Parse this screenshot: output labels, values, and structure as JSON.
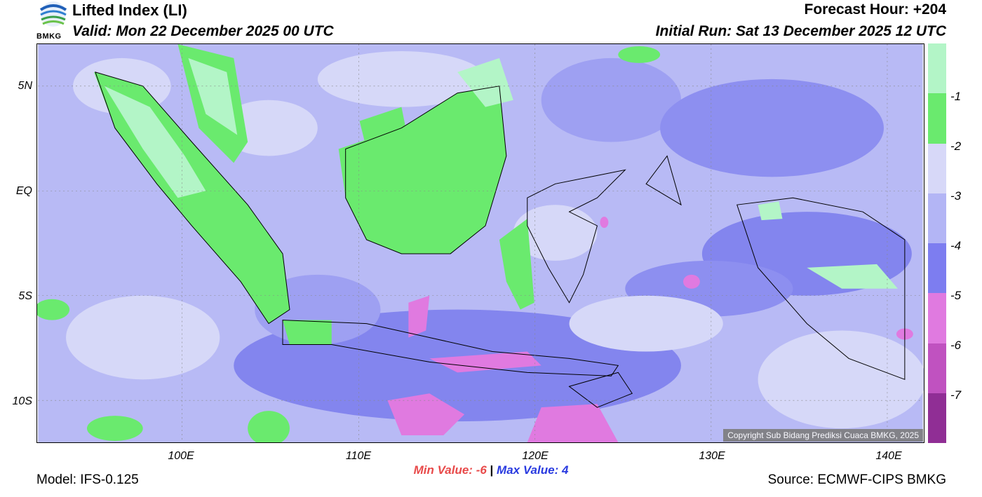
{
  "header": {
    "title": "Lifted Index (LI)",
    "valid": "Valid: Mon 22 December 2025 00 UTC",
    "forecast_hour": "Forecast Hour: +204",
    "initial_run": "Initial Run: Sat 13 December 2025 12 UTC",
    "logo_text": "BMKG"
  },
  "map": {
    "lat_labels": [
      "5N",
      "EQ",
      "5S",
      "10S"
    ],
    "lon_labels": [
      "100E",
      "110E",
      "120E",
      "130E",
      "140E"
    ],
    "copyright": "Copyright Sub Bidang Prediksi Cuaca BMKG, 2025"
  },
  "colorbar": {
    "labels": [
      "-1",
      "-2",
      "-3",
      "-4",
      "-5",
      "-6",
      "-7"
    ],
    "colors": [
      "#b3f5c7",
      "#6aea6e",
      "#d7d8f8",
      "#b3b5f5",
      "#7d7df0",
      "#e07ae0",
      "#c052c0",
      "#902e95"
    ]
  },
  "stats": {
    "min_label": "Min Value:  -6",
    "separator": "|",
    "max_label": "Max Value:   4"
  },
  "footer": {
    "model": "Model: IFS-0.125",
    "source": "Source: ECMWF-CIPS BMKG"
  }
}
